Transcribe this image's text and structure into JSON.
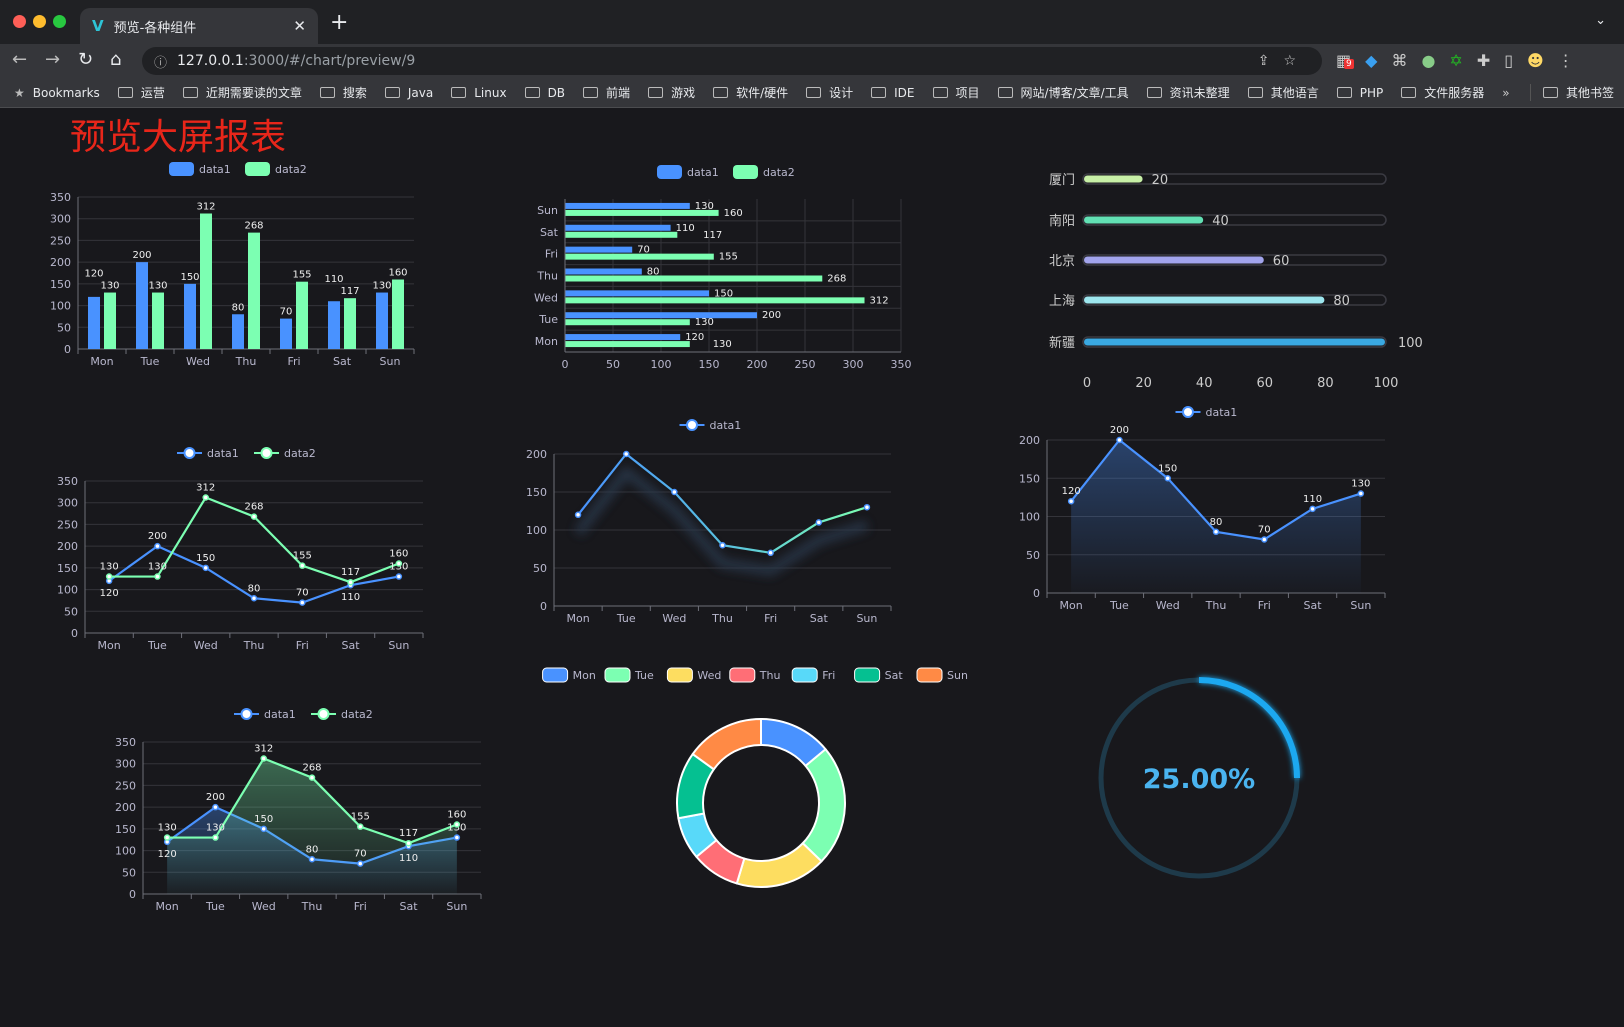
{
  "browser": {
    "tab_title": "预览-各种组件",
    "url_host": "127.0.0.1",
    "url_path": ":3000/#/chart/preview/9",
    "extension_badge": "9",
    "bookmarks": [
      "运营",
      "近期需要读的文章",
      "搜索",
      "Java",
      "Linux",
      "DB",
      "前端",
      "游戏",
      "软件/硬件",
      "设计",
      "IDE",
      "项目",
      "网站/博客/文章/工具",
      "资讯未整理",
      "其他语言",
      "PHP",
      "文件服务器"
    ],
    "bookmarks_label": "Bookmarks",
    "more_label": "»",
    "other_bookmarks": "其他书签"
  },
  "page": {
    "title": "预览大屏报表"
  },
  "colors": {
    "data1": "#4992ff",
    "data2": "#7cffb2",
    "title": "#e8261a",
    "palette": [
      "#4992ff",
      "#7cffb2",
      "#fddd60",
      "#ff6e76",
      "#58d9f9",
      "#05c091",
      "#ff8a45"
    ]
  },
  "chart_data": [
    {
      "type": "bar",
      "orientation": "vertical",
      "legend": [
        "data1",
        "data2"
      ],
      "categories": [
        "Mon",
        "Tue",
        "Wed",
        "Thu",
        "Fri",
        "Sat",
        "Sun"
      ],
      "series": [
        {
          "name": "data1",
          "values": [
            120,
            200,
            150,
            80,
            70,
            110,
            130
          ]
        },
        {
          "name": "data2",
          "values": [
            130,
            130,
            312,
            268,
            155,
            117,
            160
          ]
        }
      ],
      "ylim": [
        0,
        350
      ],
      "ytick_step": 50,
      "data_labels": true,
      "grid": true
    },
    {
      "type": "bar",
      "orientation": "horizontal",
      "legend": [
        "data1",
        "data2"
      ],
      "categories": [
        "Mon",
        "Tue",
        "Wed",
        "Thu",
        "Fri",
        "Sat",
        "Sun"
      ],
      "series": [
        {
          "name": "data1",
          "values": [
            120,
            200,
            150,
            80,
            70,
            110,
            130
          ]
        },
        {
          "name": "data2",
          "values": [
            130,
            130,
            312,
            268,
            155,
            117,
            160
          ]
        }
      ],
      "xlim": [
        0,
        350
      ],
      "xtick_step": 50,
      "data_labels": true,
      "grid": true
    },
    {
      "type": "bar",
      "orientation": "horizontal",
      "style": "progress",
      "categories": [
        "厦门",
        "南阳",
        "北京",
        "上海",
        "新疆"
      ],
      "values": [
        20,
        40,
        60,
        80,
        100
      ],
      "xlim": [
        0,
        100
      ],
      "xtick_step": 20,
      "data_labels": true,
      "colors": [
        "#c7efa6",
        "#62e0b4",
        "#a2a4ec",
        "#9de6ee",
        "#3aa9e2"
      ]
    },
    {
      "type": "line",
      "legend": [
        "data1",
        "data2"
      ],
      "categories": [
        "Mon",
        "Tue",
        "Wed",
        "Thu",
        "Fri",
        "Sat",
        "Sun"
      ],
      "series": [
        {
          "name": "data1",
          "values": [
            120,
            200,
            150,
            80,
            70,
            110,
            130
          ]
        },
        {
          "name": "data2",
          "values": [
            130,
            130,
            312,
            268,
            155,
            117,
            160
          ]
        }
      ],
      "ylim": [
        0,
        350
      ],
      "ytick_step": 50,
      "data_labels": true,
      "area": false,
      "grid": true
    },
    {
      "type": "line",
      "legend": [
        "data1"
      ],
      "categories": [
        "Mon",
        "Tue",
        "Wed",
        "Thu",
        "Fri",
        "Sat",
        "Sun"
      ],
      "series": [
        {
          "name": "data1",
          "values": [
            120,
            200,
            150,
            80,
            70,
            110,
            130
          ]
        }
      ],
      "ylim": [
        0,
        200
      ],
      "ytick_step": 50,
      "data_labels": false,
      "area": false,
      "gradient_line": true,
      "grid": true
    },
    {
      "type": "area",
      "legend": [
        "data1"
      ],
      "categories": [
        "Mon",
        "Tue",
        "Wed",
        "Thu",
        "Fri",
        "Sat",
        "Sun"
      ],
      "series": [
        {
          "name": "data1",
          "values": [
            120,
            200,
            150,
            80,
            70,
            110,
            130
          ]
        }
      ],
      "ylim": [
        0,
        200
      ],
      "ytick_step": 50,
      "data_labels": true,
      "area": true,
      "grid": true
    },
    {
      "type": "area",
      "legend": [
        "data1",
        "data2"
      ],
      "categories": [
        "Mon",
        "Tue",
        "Wed",
        "Thu",
        "Fri",
        "Sat",
        "Sun"
      ],
      "series": [
        {
          "name": "data1",
          "values": [
            120,
            200,
            150,
            80,
            70,
            110,
            130
          ]
        },
        {
          "name": "data2",
          "values": [
            130,
            130,
            312,
            268,
            155,
            117,
            160
          ]
        }
      ],
      "ylim": [
        0,
        350
      ],
      "ytick_step": 50,
      "data_labels": true,
      "area": true,
      "grid": true
    },
    {
      "type": "pie",
      "style": "donut",
      "legend": [
        "Mon",
        "Tue",
        "Wed",
        "Thu",
        "Fri",
        "Sat",
        "Sun"
      ],
      "categories": [
        "Mon",
        "Tue",
        "Wed",
        "Thu",
        "Fri",
        "Sat",
        "Sun"
      ],
      "values": [
        120,
        200,
        150,
        80,
        70,
        110,
        130
      ]
    },
    {
      "type": "gauge",
      "value": 25,
      "max": 100,
      "label": "25.00%",
      "color": "#1fa8f0",
      "track_color": "#1e3a4a"
    }
  ]
}
